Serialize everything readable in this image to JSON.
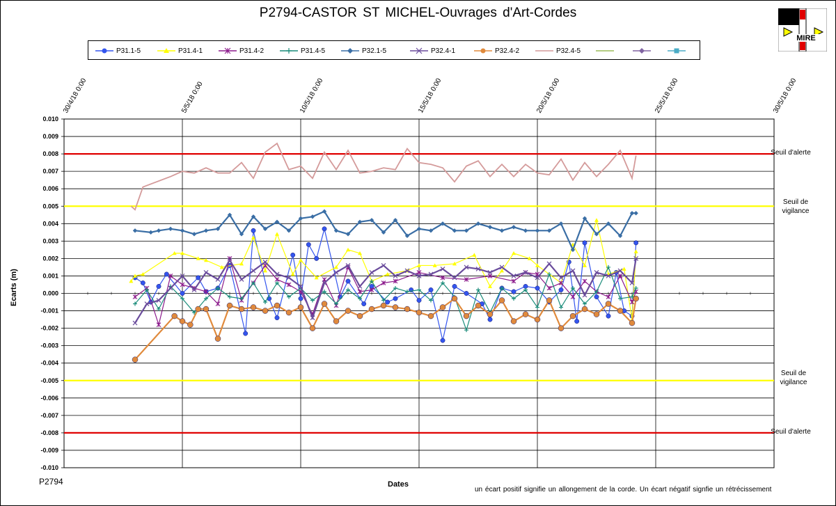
{
  "title": "P2794-CASTOR  ST MICHEL-Ouvrages  d'Art-Cordes",
  "logo_text": "MIRE",
  "footer_id": "P2794",
  "note": "un écart positif signifie un allongement de la corde. Un écart négatif signfie un rétrécissement",
  "thresholds": {
    "alert_top": "Seuil d'alerte",
    "vigilance_top": "Seuil de vigilance",
    "vigilance_bottom": "Seuil de vigilance",
    "alert_bottom": "Seuil d'alerte"
  },
  "colors": {
    "alert": "#e00000",
    "vigilance": "#ffff00",
    "grid": "#000000"
  },
  "chart_data": {
    "type": "line",
    "xlabel": "Dates",
    "ylabel": "Ecarts (m)",
    "ylim": [
      -0.01,
      0.01
    ],
    "y_ticks": [
      "0.010",
      "0.009",
      "0.008",
      "0.007",
      "0.006",
      "0.005",
      "0.004",
      "0.003",
      "0.002",
      "0.001",
      "0.000",
      "-0.001",
      "-0.002",
      "-0.003",
      "-0.004",
      "-0.005",
      "-0.006",
      "-0.007",
      "-0.008",
      "-0.009",
      "-0.010"
    ],
    "x_ticks": [
      "30/4/18 0:00",
      "5/5/18 0:00",
      "10/5/18 0:00",
      "15/5/18 0:00",
      "20/5/18 0:00",
      "25/5/18 0:00",
      "30/5/18 0:00"
    ],
    "xlim": [
      "2018-04-30",
      "2018-05-30"
    ],
    "grid": true,
    "legend_position": "top",
    "reference_lines": [
      {
        "label": "Seuil d'alerte",
        "y": 0.008,
        "color": "#e00000"
      },
      {
        "label": "Seuil de vigilance",
        "y": 0.005,
        "color": "#ffff00"
      },
      {
        "label": "Seuil de vigilance",
        "y": -0.005,
        "color": "#ffff00"
      },
      {
        "label": "Seuil d'alerte",
        "y": -0.008,
        "color": "#e00000"
      }
    ],
    "series": [
      {
        "name": "P31.1-5",
        "color": "#3355ee",
        "marker": "circle",
        "x": [
          "2018-05-03",
          "2018-05-03 08:00",
          "2018-05-03 16:00",
          "2018-05-04",
          "2018-05-04 08:00",
          "2018-05-05",
          "2018-05-05 16:00",
          "2018-05-06",
          "2018-05-06 12:00",
          "2018-05-07",
          "2018-05-07 16:00",
          "2018-05-08",
          "2018-05-08 16:00",
          "2018-05-09",
          "2018-05-09 16:00",
          "2018-05-10",
          "2018-05-10 08:00",
          "2018-05-10 16:00",
          "2018-05-11",
          "2018-05-11 16:00",
          "2018-05-12",
          "2018-05-12 16:00",
          "2018-05-13",
          "2018-05-13 16:00",
          "2018-05-14",
          "2018-05-14 16:00",
          "2018-05-15",
          "2018-05-15 12:00",
          "2018-05-16",
          "2018-05-16 12:00",
          "2018-05-17",
          "2018-05-17 16:00",
          "2018-05-18",
          "2018-05-18 12:00",
          "2018-05-19",
          "2018-05-19 12:00",
          "2018-05-20",
          "2018-05-20 12:00",
          "2018-05-21",
          "2018-05-21 08:00",
          "2018-05-21 16:00",
          "2018-05-22",
          "2018-05-22 12:00",
          "2018-05-23",
          "2018-05-23 08:00",
          "2018-05-23 16:00",
          "2018-05-24",
          "2018-05-24 04:00"
        ],
        "values": [
          0.0009,
          0.0006,
          -0.0005,
          0.0004,
          0.0011,
          0.0,
          0.0009,
          0.0001,
          0.0003,
          0.0016,
          -0.0023,
          0.0036,
          -0.0003,
          -0.0014,
          0.0022,
          -0.0003,
          0.0028,
          0.002,
          0.0037,
          -0.0002,
          0.0007,
          -0.0006,
          0.0004,
          -0.0005,
          -0.0003,
          0.0002,
          -0.0004,
          0.0002,
          -0.0027,
          0.0004,
          0.0,
          -0.0006,
          -0.0015,
          0.0003,
          0.0001,
          0.0004,
          0.0003,
          -0.0005,
          0.0002,
          0.0018,
          -0.0016,
          0.0029,
          -0.0002,
          -0.0013,
          0.0012,
          -0.001,
          -0.0013,
          0.0029
        ]
      },
      {
        "name": "P31.4-1",
        "color": "#ffff00",
        "marker": "triangle",
        "x": [
          "2018-05-02 20:00",
          "2018-05-03",
          "2018-05-03 08:00",
          "2018-05-04 16:00",
          "2018-05-05",
          "2018-05-05 16:00",
          "2018-05-06",
          "2018-05-06 16:00",
          "2018-05-07 12:00",
          "2018-05-08",
          "2018-05-08 12:00",
          "2018-05-09",
          "2018-05-09 16:00",
          "2018-05-10",
          "2018-05-10 16:00",
          "2018-05-11 12:00",
          "2018-05-12",
          "2018-05-12 12:00",
          "2018-05-13",
          "2018-05-13 16:00",
          "2018-05-14 12:00",
          "2018-05-15",
          "2018-05-15 16:00",
          "2018-05-16 12:00",
          "2018-05-17 08:00",
          "2018-05-18",
          "2018-05-18 12:00",
          "2018-05-19",
          "2018-05-19 16:00",
          "2018-05-20",
          "2018-05-21",
          "2018-05-21 12:00",
          "2018-05-22",
          "2018-05-22 12:00",
          "2018-05-23",
          "2018-05-23 16:00",
          "2018-05-24",
          "2018-05-24 04:00"
        ],
        "values": [
          0.0007,
          0.001,
          0.0011,
          0.0023,
          0.0023,
          0.002,
          0.0019,
          0.0015,
          0.0017,
          0.0032,
          0.0013,
          0.0034,
          0.0011,
          0.0019,
          0.0009,
          0.0015,
          0.0025,
          0.0023,
          0.0007,
          0.0011,
          0.0013,
          0.0016,
          0.0016,
          0.0017,
          0.0022,
          0.0004,
          0.0013,
          0.0023,
          0.002,
          0.0016,
          0.0006,
          0.0028,
          0.0016,
          0.0042,
          0.0011,
          0.0014,
          -0.0015,
          0.0024
        ]
      },
      {
        "name": "P31.4-2",
        "color": "#8b1a8b",
        "marker": "asterisk",
        "x": [
          "2018-05-03",
          "2018-05-03 12:00",
          "2018-05-04",
          "2018-05-04 12:00",
          "2018-05-05",
          "2018-05-05 12:00",
          "2018-05-06",
          "2018-05-06 12:00",
          "2018-05-07",
          "2018-05-07 12:00",
          "2018-05-08",
          "2018-05-08 12:00",
          "2018-05-09",
          "2018-05-09 12:00",
          "2018-05-10",
          "2018-05-10 12:00",
          "2018-05-11",
          "2018-05-11 12:00",
          "2018-05-12",
          "2018-05-12 12:00",
          "2018-05-13",
          "2018-05-13 12:00",
          "2018-05-14",
          "2018-05-15",
          "2018-05-16",
          "2018-05-17",
          "2018-05-18",
          "2018-05-19",
          "2018-05-19 12:00",
          "2018-05-20",
          "2018-05-20 12:00",
          "2018-05-21",
          "2018-05-21 12:00",
          "2018-05-22",
          "2018-05-22 12:00",
          "2018-05-23",
          "2018-05-23 12:00",
          "2018-05-24",
          "2018-05-24 04:00"
        ],
        "values": [
          -0.0002,
          0.0003,
          -0.0018,
          0.001,
          0.0005,
          0.0003,
          0.0001,
          -0.0006,
          0.002,
          -0.0004,
          0.0006,
          0.0016,
          0.0008,
          0.0005,
          0.0001,
          -0.0012,
          0.0008,
          -0.0007,
          0.0015,
          0.0001,
          0.0002,
          0.0006,
          0.0007,
          0.0012,
          0.0009,
          0.0008,
          0.001,
          0.0007,
          0.0012,
          0.0011,
          0.0003,
          0.0006,
          -0.0002,
          0.0007,
          0.0001,
          -0.0002,
          0.001,
          -0.0005,
          0.0001
        ]
      },
      {
        "name": "P31.4-5",
        "color": "#1a8c7a",
        "marker": "plus",
        "x": [
          "2018-05-03",
          "2018-05-03 12:00",
          "2018-05-04",
          "2018-05-04 12:00",
          "2018-05-05",
          "2018-05-05 12:00",
          "2018-05-06",
          "2018-05-06 12:00",
          "2018-05-07",
          "2018-05-07 12:00",
          "2018-05-08",
          "2018-05-08 12:00",
          "2018-05-09",
          "2018-05-09 12:00",
          "2018-05-10",
          "2018-05-10 12:00",
          "2018-05-11",
          "2018-05-11 12:00",
          "2018-05-12",
          "2018-05-12 12:00",
          "2018-05-13",
          "2018-05-13 12:00",
          "2018-05-14",
          "2018-05-14 12:00",
          "2018-05-15",
          "2018-05-15 12:00",
          "2018-05-16",
          "2018-05-16 12:00",
          "2018-05-17",
          "2018-05-17 12:00",
          "2018-05-18",
          "2018-05-18 12:00",
          "2018-05-19",
          "2018-05-19 12:00",
          "2018-05-20",
          "2018-05-20 12:00",
          "2018-05-21",
          "2018-05-21 12:00",
          "2018-05-22",
          "2018-05-22 12:00",
          "2018-05-23",
          "2018-05-23 12:00",
          "2018-05-24",
          "2018-05-24 04:00"
        ],
        "values": [
          -0.0006,
          0.0002,
          -0.0009,
          0.0004,
          -0.0003,
          -0.0011,
          -0.0003,
          0.0003,
          -0.0002,
          -0.0003,
          0.0006,
          -0.0005,
          0.0006,
          -0.0002,
          0.0003,
          -0.0004,
          0.0001,
          -0.0006,
          0.0002,
          -0.0003,
          0.0007,
          -0.0004,
          0.0003,
          0.0001,
          0.0002,
          -0.0004,
          0.0006,
          -0.0002,
          -0.0021,
          0.0002,
          -0.0011,
          0.0003,
          -0.0003,
          0.0002,
          -0.0008,
          0.0011,
          -0.0008,
          0.0003,
          -0.0006,
          0.0001,
          0.0015,
          -0.0003,
          -0.0002,
          0.0003
        ]
      },
      {
        "name": "P32.1-5",
        "color": "#3a6ea5",
        "marker": "diamond",
        "x": [
          "2018-05-03",
          "2018-05-03 16:00",
          "2018-05-04",
          "2018-05-04 12:00",
          "2018-05-05",
          "2018-05-05 12:00",
          "2018-05-06",
          "2018-05-06 12:00",
          "2018-05-07",
          "2018-05-07 12:00",
          "2018-05-08",
          "2018-05-08 12:00",
          "2018-05-09",
          "2018-05-09 12:00",
          "2018-05-10",
          "2018-05-10 12:00",
          "2018-05-11",
          "2018-05-11 12:00",
          "2018-05-12",
          "2018-05-12 12:00",
          "2018-05-13",
          "2018-05-13 12:00",
          "2018-05-14",
          "2018-05-14 12:00",
          "2018-05-15",
          "2018-05-15 12:00",
          "2018-05-16",
          "2018-05-16 12:00",
          "2018-05-17",
          "2018-05-17 12:00",
          "2018-05-18",
          "2018-05-18 12:00",
          "2018-05-19",
          "2018-05-19 12:00",
          "2018-05-20",
          "2018-05-20 12:00",
          "2018-05-21",
          "2018-05-21 12:00",
          "2018-05-22",
          "2018-05-22 12:00",
          "2018-05-23",
          "2018-05-23 12:00",
          "2018-05-24",
          "2018-05-24 04:00"
        ],
        "values": [
          0.0036,
          0.0035,
          0.0036,
          0.0037,
          0.0036,
          0.0034,
          0.0036,
          0.0037,
          0.0045,
          0.0034,
          0.0044,
          0.0037,
          0.0041,
          0.0036,
          0.0043,
          0.0044,
          0.0047,
          0.0036,
          0.0034,
          0.0041,
          0.0042,
          0.0035,
          0.0042,
          0.0033,
          0.0037,
          0.0036,
          0.004,
          0.0036,
          0.0036,
          0.004,
          0.0038,
          0.0036,
          0.0038,
          0.0036,
          0.0036,
          0.0036,
          0.004,
          0.0025,
          0.0043,
          0.0034,
          0.004,
          0.0033,
          0.0046,
          0.0046
        ]
      },
      {
        "name": "P32.4-1",
        "color": "#6a4c9c",
        "marker": "cross",
        "x": [
          "2018-05-03",
          "2018-05-03 12:00",
          "2018-05-04",
          "2018-05-04 12:00",
          "2018-05-05",
          "2018-05-05 12:00",
          "2018-05-06",
          "2018-05-06 12:00",
          "2018-05-07",
          "2018-05-07 12:00",
          "2018-05-08",
          "2018-05-08 12:00",
          "2018-05-09",
          "2018-05-09 12:00",
          "2018-05-10",
          "2018-05-10 12:00",
          "2018-05-11",
          "2018-05-11 12:00",
          "2018-05-12",
          "2018-05-12 12:00",
          "2018-05-13",
          "2018-05-13 12:00",
          "2018-05-14",
          "2018-05-14 12:00",
          "2018-05-15",
          "2018-05-15 12:00",
          "2018-05-16",
          "2018-05-16 12:00",
          "2018-05-17",
          "2018-05-17 12:00",
          "2018-05-18",
          "2018-05-18 12:00",
          "2018-05-19",
          "2018-05-19 12:00",
          "2018-05-20",
          "2018-05-20 12:00",
          "2018-05-21",
          "2018-05-21 12:00",
          "2018-05-22",
          "2018-05-22 12:00",
          "2018-05-23",
          "2018-05-23 12:00",
          "2018-05-24",
          "2018-05-24 04:00"
        ],
        "values": [
          -0.0017,
          -0.0006,
          -0.0004,
          0.0003,
          0.001,
          0.0002,
          0.0012,
          0.0008,
          0.0019,
          0.0008,
          0.0013,
          0.0018,
          0.0011,
          0.0009,
          0.0004,
          -0.0014,
          0.0006,
          0.0012,
          0.0016,
          0.0004,
          0.0012,
          0.0016,
          0.001,
          0.0013,
          0.001,
          0.0011,
          0.0014,
          0.0009,
          0.0015,
          0.0014,
          0.0012,
          0.0015,
          0.001,
          0.0012,
          0.0009,
          0.0017,
          0.0009,
          0.0013,
          -0.0001,
          0.0012,
          0.001,
          0.0013,
          0.0006,
          0.002
        ]
      },
      {
        "name": "P32.4-2",
        "color": "#e08a3c",
        "marker": "circle",
        "x": [
          "2018-05-03",
          "2018-05-04 16:00",
          "2018-05-05",
          "2018-05-05 08:00",
          "2018-05-05 16:00",
          "2018-05-06",
          "2018-05-06 12:00",
          "2018-05-07",
          "2018-05-07 12:00",
          "2018-05-08",
          "2018-05-08 12:00",
          "2018-05-09",
          "2018-05-09 12:00",
          "2018-05-10",
          "2018-05-10 12:00",
          "2018-05-11",
          "2018-05-11 12:00",
          "2018-05-12",
          "2018-05-12 12:00",
          "2018-05-13",
          "2018-05-13 12:00",
          "2018-05-14",
          "2018-05-14 12:00",
          "2018-05-15",
          "2018-05-15 12:00",
          "2018-05-16",
          "2018-05-16 12:00",
          "2018-05-17",
          "2018-05-17 12:00",
          "2018-05-18",
          "2018-05-18 12:00",
          "2018-05-19",
          "2018-05-19 12:00",
          "2018-05-20",
          "2018-05-20 12:00",
          "2018-05-21",
          "2018-05-21 12:00",
          "2018-05-22",
          "2018-05-22 12:00",
          "2018-05-23",
          "2018-05-23 12:00",
          "2018-05-24",
          "2018-05-24 04:00"
        ],
        "values": [
          -0.0038,
          -0.0013,
          -0.0016,
          -0.0018,
          -0.0009,
          -0.0009,
          -0.0026,
          -0.0007,
          -0.0009,
          -0.0008,
          -0.001,
          -0.0007,
          -0.0011,
          -0.0008,
          -0.002,
          -0.0006,
          -0.0016,
          -0.001,
          -0.0013,
          -0.0009,
          -0.0007,
          -0.0008,
          -0.0009,
          -0.0011,
          -0.0013,
          -0.0008,
          -0.0003,
          -0.0013,
          -0.0007,
          -0.0012,
          -0.0004,
          -0.0016,
          -0.0012,
          -0.0015,
          -0.0004,
          -0.002,
          -0.0013,
          -0.0009,
          -0.0012,
          -0.0006,
          -0.001,
          -0.0017,
          -0.0003
        ]
      },
      {
        "name": "P32.4-5",
        "color": "#d49a9a",
        "marker": "none",
        "x": [
          "2018-05-02 20:00",
          "2018-05-03",
          "2018-05-03 08:00",
          "2018-05-04 12:00",
          "2018-05-05",
          "2018-05-05 12:00",
          "2018-05-06",
          "2018-05-06 12:00",
          "2018-05-07",
          "2018-05-07 12:00",
          "2018-05-08",
          "2018-05-08 12:00",
          "2018-05-09",
          "2018-05-09 12:00",
          "2018-05-10",
          "2018-05-10 12:00",
          "2018-05-11",
          "2018-05-11 12:00",
          "2018-05-12",
          "2018-05-12 12:00",
          "2018-05-13",
          "2018-05-13 12:00",
          "2018-05-14",
          "2018-05-14 12:00",
          "2018-05-15",
          "2018-05-15 12:00",
          "2018-05-16",
          "2018-05-16 12:00",
          "2018-05-17",
          "2018-05-17 12:00",
          "2018-05-18",
          "2018-05-18 12:00",
          "2018-05-19",
          "2018-05-19 12:00",
          "2018-05-20",
          "2018-05-20 12:00",
          "2018-05-21",
          "2018-05-21 12:00",
          "2018-05-22",
          "2018-05-22 12:00",
          "2018-05-23",
          "2018-05-23 12:00",
          "2018-05-24",
          "2018-05-24 04:00"
        ],
        "values": [
          0.005,
          0.0048,
          0.0061,
          0.0067,
          0.007,
          0.0069,
          0.0072,
          0.0069,
          0.0069,
          0.0075,
          0.0066,
          0.0081,
          0.0086,
          0.0071,
          0.0073,
          0.0066,
          0.0081,
          0.0071,
          0.0082,
          0.0069,
          0.007,
          0.0072,
          0.0071,
          0.0083,
          0.0075,
          0.0074,
          0.0072,
          0.0064,
          0.0073,
          0.0076,
          0.0067,
          0.0074,
          0.0067,
          0.0074,
          0.0069,
          0.0068,
          0.0077,
          0.0065,
          0.0075,
          0.0067,
          0.0074,
          0.0082,
          0.0066,
          0.0079
        ]
      },
      {
        "name": "",
        "color": "#9bbb59",
        "marker": "none",
        "x": [],
        "values": []
      },
      {
        "name": "",
        "color": "#8064a2",
        "marker": "diamond",
        "x": [],
        "values": []
      },
      {
        "name": "",
        "color": "#4bacc6",
        "marker": "square",
        "x": [],
        "values": []
      }
    ]
  }
}
